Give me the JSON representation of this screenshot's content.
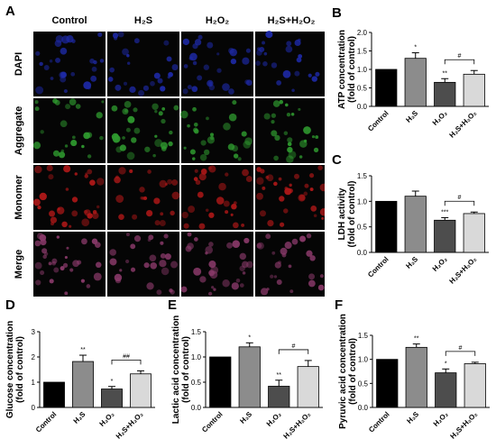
{
  "panel_letters": {
    "a": "A",
    "b": "B",
    "c": "C",
    "d": "D",
    "e": "E",
    "f": "F"
  },
  "micrographs": {
    "columns": [
      "Control",
      "H₂S",
      "H₂O₂",
      "H₂S+H₂O₂"
    ],
    "rows": [
      "DAPI",
      "Aggregate",
      "Monomer",
      "Merge"
    ],
    "row_colors": {
      "DAPI": "#1e2aa8",
      "Aggregate": "#2f9a2f",
      "Monomer": "#b01818",
      "Merge": "#8a3a6a"
    }
  },
  "bar_colors": [
    "#000000",
    "#8c8c8c",
    "#4d4d4d",
    "#d9d9d9"
  ],
  "chart_data": [
    {
      "panel": "B",
      "type": "bar",
      "categories": [
        "Control",
        "H₂S",
        "H₂O₂",
        "H₂S+H₂O₂"
      ],
      "values": [
        1.0,
        1.3,
        0.65,
        0.87
      ],
      "errors": [
        0,
        0.15,
        0.1,
        0.1
      ],
      "ylabel": [
        "ATP concentration",
        "(fold of control)"
      ],
      "ylim": [
        0,
        2.0
      ],
      "yticks": [
        "0.0",
        "0.5",
        "1.0",
        "1.5",
        "2.0"
      ],
      "annotations": [
        "",
        "*",
        "**",
        ""
      ],
      "bracket": {
        "from": 2,
        "to": 3,
        "label": "#"
      }
    },
    {
      "panel": "C",
      "type": "bar",
      "categories": [
        "Control",
        "H₂S",
        "H₂O₂",
        "H₂S+H₂O₂"
      ],
      "values": [
        1.0,
        1.1,
        0.63,
        0.76
      ],
      "errors": [
        0,
        0.1,
        0.05,
        0.03
      ],
      "ylabel": [
        "LDH activity",
        "(fold of control)"
      ],
      "ylim": [
        0,
        1.5
      ],
      "yticks": [
        "0.0",
        "0.5",
        "1.0",
        "1.5"
      ],
      "annotations": [
        "",
        "",
        "***",
        ""
      ],
      "bracket": {
        "from": 2,
        "to": 3,
        "label": "#"
      }
    },
    {
      "panel": "D",
      "type": "bar",
      "categories": [
        "Control",
        "H₂S",
        "H₂O₂",
        "H₂S+H₂O₂"
      ],
      "values": [
        1.0,
        1.82,
        0.73,
        1.33
      ],
      "errors": [
        0,
        0.25,
        0.1,
        0.12
      ],
      "ylabel": [
        "Glucose concentration",
        "(fold of control)"
      ],
      "ylim": [
        0,
        3
      ],
      "yticks": [
        "0",
        "1",
        "2",
        "3"
      ],
      "annotations": [
        "",
        "**",
        "*",
        ""
      ],
      "bracket": {
        "from": 2,
        "to": 3,
        "label": "##"
      }
    },
    {
      "panel": "E",
      "type": "bar",
      "categories": [
        "Control",
        "H₂S",
        "H₂O₂",
        "H₂S+H₂O₂"
      ],
      "values": [
        1.0,
        1.2,
        0.42,
        0.81
      ],
      "errors": [
        0,
        0.08,
        0.12,
        0.12
      ],
      "ylabel": [
        "Lactic acid concentration",
        "(fold of control)"
      ],
      "ylim": [
        0,
        1.5
      ],
      "yticks": [
        "0.0",
        "0.5",
        "1.0",
        "1.5"
      ],
      "annotations": [
        "",
        "*",
        "**",
        ""
      ],
      "bracket": {
        "from": 2,
        "to": 3,
        "label": "#"
      }
    },
    {
      "panel": "F",
      "type": "bar",
      "categories": [
        "Control",
        "H₂S",
        "H₂O₂",
        "H₂S+H₂O₂"
      ],
      "values": [
        1.0,
        1.25,
        0.72,
        0.91
      ],
      "errors": [
        0,
        0.07,
        0.08,
        0.03
      ],
      "ylabel": [
        "Pyruvic acid concentration",
        "(fold of control)"
      ],
      "ylim": [
        0,
        1.5
      ],
      "yticks": [
        "0.0",
        "0.5",
        "1.0",
        "1.5"
      ],
      "annotations": [
        "",
        "**",
        "*",
        ""
      ],
      "bracket": {
        "from": 2,
        "to": 3,
        "label": "#"
      }
    }
  ]
}
